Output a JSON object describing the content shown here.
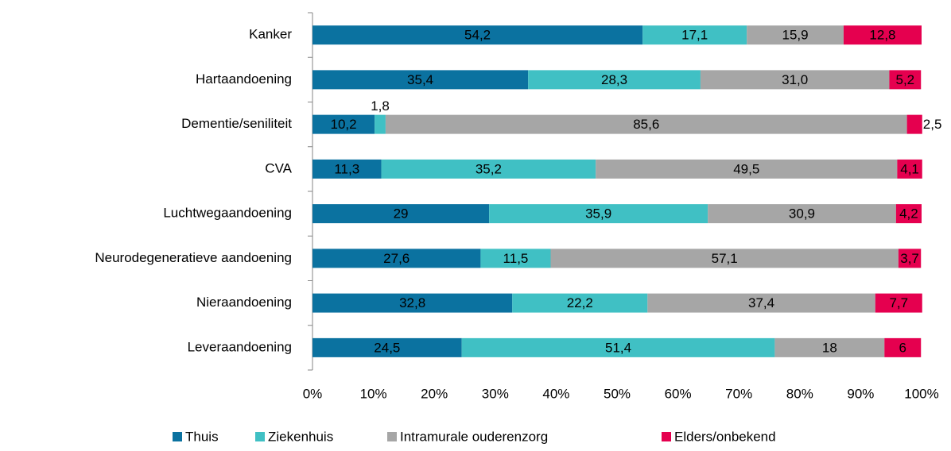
{
  "chart_data": {
    "type": "stacked-bar-horizontal",
    "categories": [
      "Kanker",
      "Hartaandoening",
      "Dementie/seniliteit",
      "CVA",
      "Luchtwegaandoening",
      "Neurodegeneratieve aandoening",
      "Nieraandoening",
      "Leveraandoening"
    ],
    "series": [
      {
        "name": "Thuis",
        "color": "#0b72a0",
        "values": [
          54.2,
          35.4,
          10.2,
          11.3,
          29,
          27.6,
          32.8,
          24.5
        ],
        "value_labels": [
          "54,2",
          "35,4",
          "10,2",
          "11,3",
          "29",
          "27,6",
          "32,8",
          "24,5"
        ]
      },
      {
        "name": "Ziekenhuis",
        "color": "#40c0c4",
        "values": [
          17.1,
          28.3,
          1.8,
          35.2,
          35.9,
          11.5,
          22.2,
          51.4
        ],
        "value_labels": [
          "17,1",
          "28,3",
          "1,8",
          "35,2",
          "35,9",
          "11,5",
          "22,2",
          "51,4"
        ]
      },
      {
        "name": "Intramurale ouderenzorg",
        "color": "#a6a6a6",
        "values": [
          15.9,
          31.0,
          85.6,
          49.5,
          30.9,
          57.1,
          37.4,
          18
        ],
        "value_labels": [
          "15,9",
          "31,0",
          "85,6",
          "49,5",
          "30,9",
          "57,1",
          "37,4",
          "18"
        ]
      },
      {
        "name": "Elders/onbekend",
        "color": "#e5004f",
        "values": [
          12.8,
          5.2,
          2.5,
          4.1,
          4.2,
          3.7,
          7.7,
          6
        ],
        "value_labels": [
          "12,8",
          "5,2",
          "2,5",
          "4,1",
          "4,2",
          "3,7",
          "7,7",
          "6"
        ]
      }
    ],
    "xlim": [
      0,
      100
    ],
    "xticks": [
      {
        "value": 0,
        "label": "0%"
      },
      {
        "value": 10,
        "label": "10%"
      },
      {
        "value": 20,
        "label": "20%"
      },
      {
        "value": 30,
        "label": "30%"
      },
      {
        "value": 40,
        "label": "40%"
      },
      {
        "value": 50,
        "label": "50%"
      },
      {
        "value": 60,
        "label": "60%"
      },
      {
        "value": 70,
        "label": "70%"
      },
      {
        "value": 80,
        "label": "80%"
      },
      {
        "value": 90,
        "label": "90%"
      },
      {
        "value": 100,
        "label": "100%"
      }
    ],
    "legend": "bottom"
  }
}
